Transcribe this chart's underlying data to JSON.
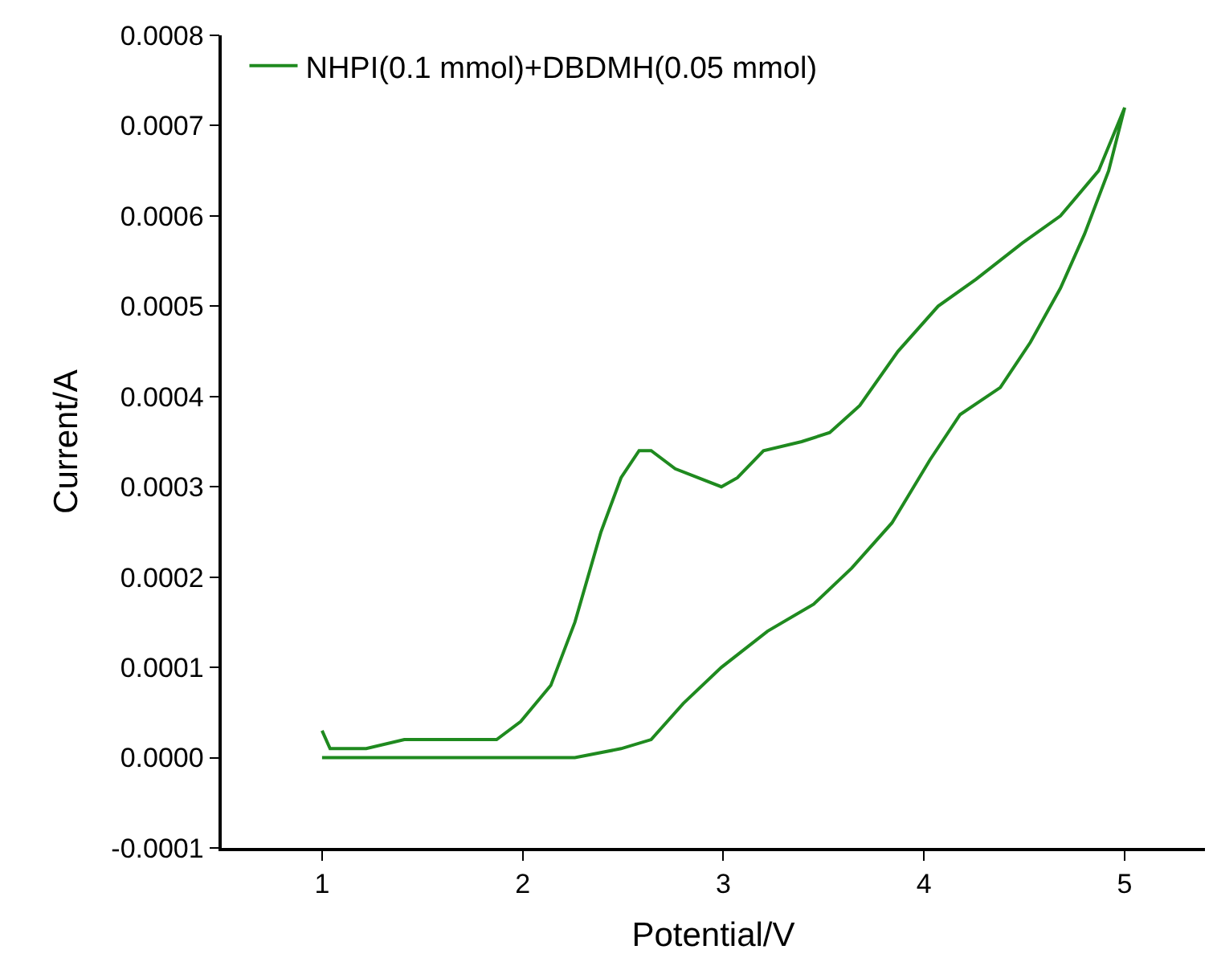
{
  "chart_data": {
    "type": "line",
    "xlabel": "Potential/V",
    "ylabel": "Current/A",
    "xlim": [
      0.5,
      5.4
    ],
    "xticks": [
      1,
      2,
      3,
      4,
      5
    ],
    "ylim": [
      -0.0001,
      0.0008
    ],
    "yticks": [
      {
        "value": -0.0001,
        "label": "-0.0001"
      },
      {
        "value": 0,
        "label": "0.0000"
      },
      {
        "value": 0.0001,
        "label": "0.0001"
      },
      {
        "value": 0.0002,
        "label": "0.0002"
      },
      {
        "value": 0.0003,
        "label": "0.0003"
      },
      {
        "value": 0.0004,
        "label": "0.0004"
      },
      {
        "value": 0.0005,
        "label": "0.0005"
      },
      {
        "value": 0.0006,
        "label": "0.0006"
      },
      {
        "value": 0.0007,
        "label": "0.0007"
      },
      {
        "value": 0.0008,
        "label": "0.0008"
      }
    ],
    "legend": "top left",
    "marker": "none",
    "line_style": "solid",
    "series": [
      {
        "name": "NHPI(0.1 mmol)+DBDMH(0.05 mmol)",
        "color": "#1f8a1f",
        "x": [
          1.0,
          1.04,
          1.1,
          1.22,
          1.41,
          1.87,
          1.99,
          2.14,
          2.26,
          2.39,
          2.49,
          2.58,
          2.64,
          2.76,
          2.99,
          3.07,
          3.2,
          3.39,
          3.53,
          3.68,
          3.87,
          4.07,
          4.26,
          4.49,
          4.68,
          4.87,
          5.0,
          4.92,
          4.8,
          4.68,
          4.53,
          4.38,
          4.18,
          4.03,
          3.84,
          3.64,
          3.45,
          3.22,
          2.99,
          2.8,
          2.64,
          2.49,
          2.26,
          1.72,
          1.0
        ],
        "values": [
          3e-05,
          1e-05,
          1e-05,
          1e-05,
          2e-05,
          2e-05,
          4e-05,
          8e-05,
          0.00015,
          0.00025,
          0.00031,
          0.00034,
          0.00034,
          0.00032,
          0.0003,
          0.00031,
          0.00034,
          0.00035,
          0.00036,
          0.00039,
          0.00045,
          0.0005,
          0.00053,
          0.00057,
          0.0006,
          0.00065,
          0.00072,
          0.00065,
          0.00058,
          0.00052,
          0.00046,
          0.00041,
          0.00038,
          0.00033,
          0.00026,
          0.00021,
          0.00017,
          0.00014,
          0.0001,
          6e-05,
          2e-05,
          1e-05,
          0.0,
          0.0,
          0.0
        ]
      }
    ]
  }
}
